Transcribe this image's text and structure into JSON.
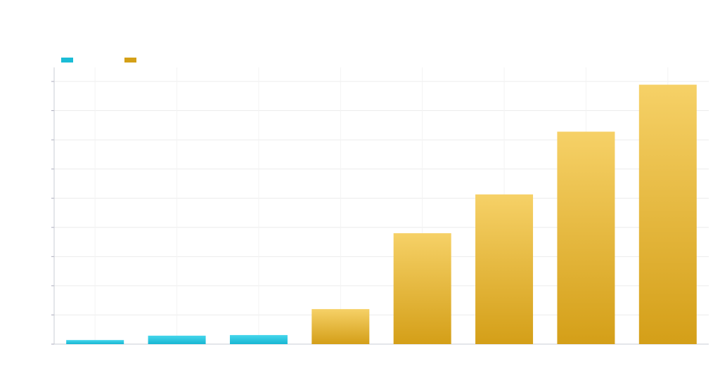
{
  "chart_data": {
    "type": "bar",
    "title": "",
    "xlabel": "",
    "ylabel": "",
    "categories": [
      "",
      "",
      "",
      "",
      "",
      "",
      "",
      ""
    ],
    "ylim": [
      0,
      9
    ],
    "grid": true,
    "legend_placement": "top-left",
    "series": [
      {
        "color": "#1bbcd6",
        "values": [
          0.14,
          0.29,
          0.31,
          null,
          null,
          null,
          null,
          null
        ]
      },
      {
        "color": "#d4a017",
        "values": [
          null,
          null,
          null,
          1.2,
          3.8,
          5.13,
          7.28,
          8.89
        ]
      }
    ]
  }
}
